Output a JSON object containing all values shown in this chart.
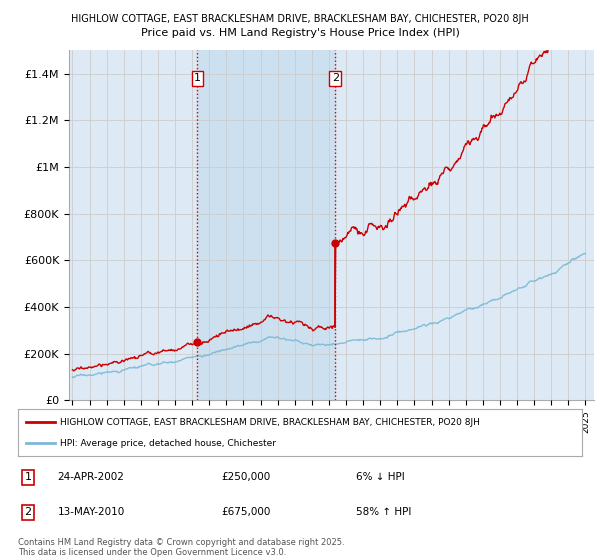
{
  "title_line1": "HIGHLOW COTTAGE, EAST BRACKLESHAM DRIVE, BRACKLESHAM BAY, CHICHESTER, PO20 8JH",
  "title_line2": "Price paid vs. HM Land Registry's House Price Index (HPI)",
  "ylim": [
    0,
    1500000
  ],
  "yticks": [
    0,
    200000,
    400000,
    600000,
    800000,
    1000000,
    1200000,
    1400000
  ],
  "ytick_labels": [
    "£0",
    "£200K",
    "£400K",
    "£600K",
    "£800K",
    "£1M",
    "£1.2M",
    "£1.4M"
  ],
  "x_start_year": 1995,
  "x_end_year": 2025,
  "hpi_color": "#7bb8d4",
  "price_color": "#cc0000",
  "vline_color": "#cc0000",
  "grid_color": "#cccccc",
  "bg_color": "#ddeaf5",
  "band_color": "#cce0f0",
  "sale1_year": 2002.3,
  "sale1_price": 250000,
  "sale2_year": 2010.37,
  "sale2_price": 675000,
  "legend_property": "HIGHLOW COTTAGE, EAST BRACKLESHAM DRIVE, BRACKLESHAM BAY, CHICHESTER, PO20 8JH",
  "legend_hpi": "HPI: Average price, detached house, Chichester",
  "footer": "Contains HM Land Registry data © Crown copyright and database right 2025.\nThis data is licensed under the Open Government Licence v3.0."
}
